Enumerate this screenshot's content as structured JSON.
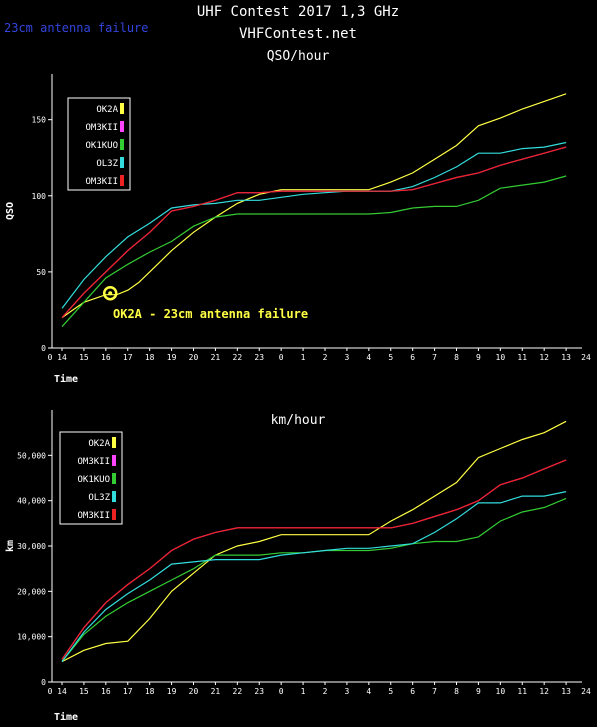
{
  "header": {
    "title": "UHF Contest 2017 1,3 GHz",
    "site": "VHFContest.net",
    "corner_note": "23cm antenna failure"
  },
  "chart_data": [
    {
      "type": "line",
      "title": "QSO/hour",
      "xlabel": "Time",
      "ylabel": "QSO",
      "x_ticks": [
        "14",
        "15",
        "16",
        "17",
        "18",
        "19",
        "20",
        "21",
        "22",
        "23",
        "0",
        "1",
        "2",
        "3",
        "4",
        "5",
        "6",
        "7",
        "8",
        "9",
        "10",
        "11",
        "12",
        "13"
      ],
      "x_start_label": "0",
      "x_end_label": "24",
      "ylim": [
        0,
        180
      ],
      "y_ticks": [
        {
          "value": 0,
          "label": "0"
        },
        {
          "value": 50,
          "label": "50"
        },
        {
          "value": 100,
          "label": "100"
        },
        {
          "value": 150,
          "label": "150"
        }
      ],
      "grid": false,
      "legend_position": "top-left",
      "annotation": {
        "text": "OK2A - 23cm antenna failure",
        "x": 16.2,
        "y": 36,
        "color": "#ffff44"
      },
      "series": [
        {
          "name": "OK2A",
          "color": "#ffff44",
          "x": [
            14,
            15,
            16,
            16.5,
            17,
            17.5,
            18,
            19,
            20,
            21,
            22,
            23,
            0,
            1,
            2,
            3,
            4,
            5,
            6,
            7,
            8,
            9,
            10,
            11,
            12,
            13
          ],
          "values": [
            20,
            30,
            35,
            35,
            38,
            43,
            50,
            64,
            76,
            86,
            95,
            101,
            104,
            104,
            104,
            104,
            104,
            109,
            115,
            124,
            133,
            146,
            151,
            157,
            162,
            167
          ]
        },
        {
          "name": "OM3KII",
          "color": "#ff44ff",
          "x": [
            14,
            15,
            16,
            17,
            18,
            19,
            20,
            21,
            22,
            23,
            0,
            1,
            2,
            3,
            4,
            5,
            6,
            7,
            8,
            9,
            10,
            11,
            12,
            13
          ],
          "values": [
            20,
            36,
            50,
            64,
            76,
            90,
            93,
            97,
            102,
            102,
            103,
            103,
            103,
            103,
            103,
            103,
            104,
            108,
            112,
            115,
            120,
            124,
            128,
            132
          ]
        },
        {
          "name": "OK1KUO",
          "color": "#33cc33",
          "x": [
            14,
            15,
            16,
            17,
            18,
            19,
            20,
            21,
            22,
            23,
            0,
            1,
            2,
            3,
            4,
            5,
            6,
            7,
            8,
            9,
            10,
            11,
            12,
            13
          ],
          "values": [
            14,
            30,
            46,
            55,
            63,
            70,
            80,
            86,
            88,
            88,
            88,
            88,
            88,
            88,
            88,
            89,
            92,
            93,
            93,
            97,
            105,
            107,
            109,
            113
          ]
        },
        {
          "name": "OL3Z",
          "color": "#33dddd",
          "x": [
            14,
            15,
            16,
            17,
            18,
            19,
            20,
            21,
            22,
            23,
            0,
            1,
            2,
            3,
            4,
            5,
            6,
            7,
            8,
            9,
            10,
            11,
            12,
            13
          ],
          "values": [
            26,
            45,
            60,
            73,
            82,
            92,
            94,
            95,
            97,
            97,
            99,
            101,
            102,
            103,
            103,
            103,
            106,
            112,
            119,
            128,
            128,
            131,
            132,
            135
          ]
        },
        {
          "name": "OM3KII",
          "color": "#ee2222",
          "x": [
            14,
            15,
            16,
            17,
            18,
            19,
            20,
            21,
            22,
            23,
            0,
            1,
            2,
            3,
            4,
            5,
            6,
            7,
            8,
            9,
            10,
            11,
            12,
            13
          ],
          "values": [
            20,
            36,
            50,
            64,
            76,
            90,
            93,
            97,
            102,
            102,
            103,
            103,
            103,
            103,
            103,
            103,
            104,
            108,
            112,
            115,
            120,
            124,
            128,
            132
          ]
        }
      ]
    },
    {
      "type": "line",
      "title": "km/hour",
      "xlabel": "Time",
      "ylabel": "km",
      "x_ticks": [
        "14",
        "15",
        "16",
        "17",
        "18",
        "19",
        "20",
        "21",
        "22",
        "23",
        "0",
        "1",
        "2",
        "3",
        "4",
        "5",
        "6",
        "7",
        "8",
        "9",
        "10",
        "11",
        "12",
        "13"
      ],
      "x_start_label": "0",
      "x_end_label": "24",
      "ylim": [
        0,
        60000
      ],
      "y_ticks": [
        {
          "value": 0,
          "label": "0"
        },
        {
          "value": 10000,
          "label": "10,000"
        },
        {
          "value": 20000,
          "label": "20,000"
        },
        {
          "value": 30000,
          "label": "30,000"
        },
        {
          "value": 40000,
          "label": "40,000"
        },
        {
          "value": 50000,
          "label": "50,000"
        }
      ],
      "grid": false,
      "legend_position": "top-left",
      "series": [
        {
          "name": "OK2A",
          "color": "#ffff44",
          "x": [
            14,
            15,
            16,
            17,
            18,
            19,
            20,
            21,
            22,
            23,
            0,
            1,
            2,
            3,
            4,
            5,
            6,
            7,
            8,
            9,
            10,
            11,
            12,
            13
          ],
          "values": [
            4500,
            7000,
            8500,
            9000,
            14000,
            20000,
            24000,
            28000,
            30000,
            31000,
            32500,
            32500,
            32500,
            32500,
            32500,
            35500,
            38000,
            41000,
            44000,
            49500,
            51500,
            53500,
            55000,
            57500
          ]
        },
        {
          "name": "OM3KII",
          "color": "#ff44ff",
          "x": [
            14,
            15,
            16,
            17,
            18,
            19,
            20,
            21,
            22,
            23,
            0,
            1,
            2,
            3,
            4,
            5,
            6,
            7,
            8,
            9,
            10,
            11,
            12,
            13
          ],
          "values": [
            5000,
            12000,
            17500,
            21500,
            25000,
            29000,
            31500,
            33000,
            34000,
            34000,
            34000,
            34000,
            34000,
            34000,
            34000,
            34000,
            35000,
            36500,
            38000,
            40000,
            43500,
            45000,
            47000,
            49000
          ]
        },
        {
          "name": "OK1KUO",
          "color": "#33cc33",
          "x": [
            14,
            15,
            16,
            17,
            18,
            19,
            20,
            21,
            22,
            23,
            0,
            1,
            2,
            3,
            4,
            5,
            6,
            7,
            8,
            9,
            10,
            11,
            12,
            13
          ],
          "values": [
            4500,
            10500,
            14500,
            17500,
            20000,
            22500,
            25000,
            28000,
            28000,
            28000,
            28500,
            28500,
            29000,
            29000,
            29000,
            29500,
            30500,
            31000,
            31000,
            32000,
            35500,
            37500,
            38500,
            40500
          ]
        },
        {
          "name": "OL3Z",
          "color": "#33dddd",
          "x": [
            14,
            15,
            16,
            17,
            18,
            19,
            20,
            21,
            22,
            23,
            0,
            1,
            2,
            3,
            4,
            5,
            6,
            7,
            8,
            9,
            10,
            11,
            12,
            13
          ],
          "values": [
            4500,
            11000,
            16000,
            19500,
            22500,
            26000,
            26500,
            27000,
            27000,
            27000,
            28000,
            28500,
            29000,
            29500,
            29500,
            30000,
            30500,
            33000,
            36000,
            39500,
            39500,
            41000,
            41000,
            42000
          ]
        },
        {
          "name": "OM3KII",
          "color": "#ee2222",
          "x": [
            14,
            15,
            16,
            17,
            18,
            19,
            20,
            21,
            22,
            23,
            0,
            1,
            2,
            3,
            4,
            5,
            6,
            7,
            8,
            9,
            10,
            11,
            12,
            13
          ],
          "values": [
            5000,
            12000,
            17500,
            21500,
            25000,
            29000,
            31500,
            33000,
            34000,
            34000,
            34000,
            34000,
            34000,
            34000,
            34000,
            34000,
            35000,
            36500,
            38000,
            40000,
            43500,
            45000,
            47000,
            49000
          ]
        }
      ]
    }
  ]
}
